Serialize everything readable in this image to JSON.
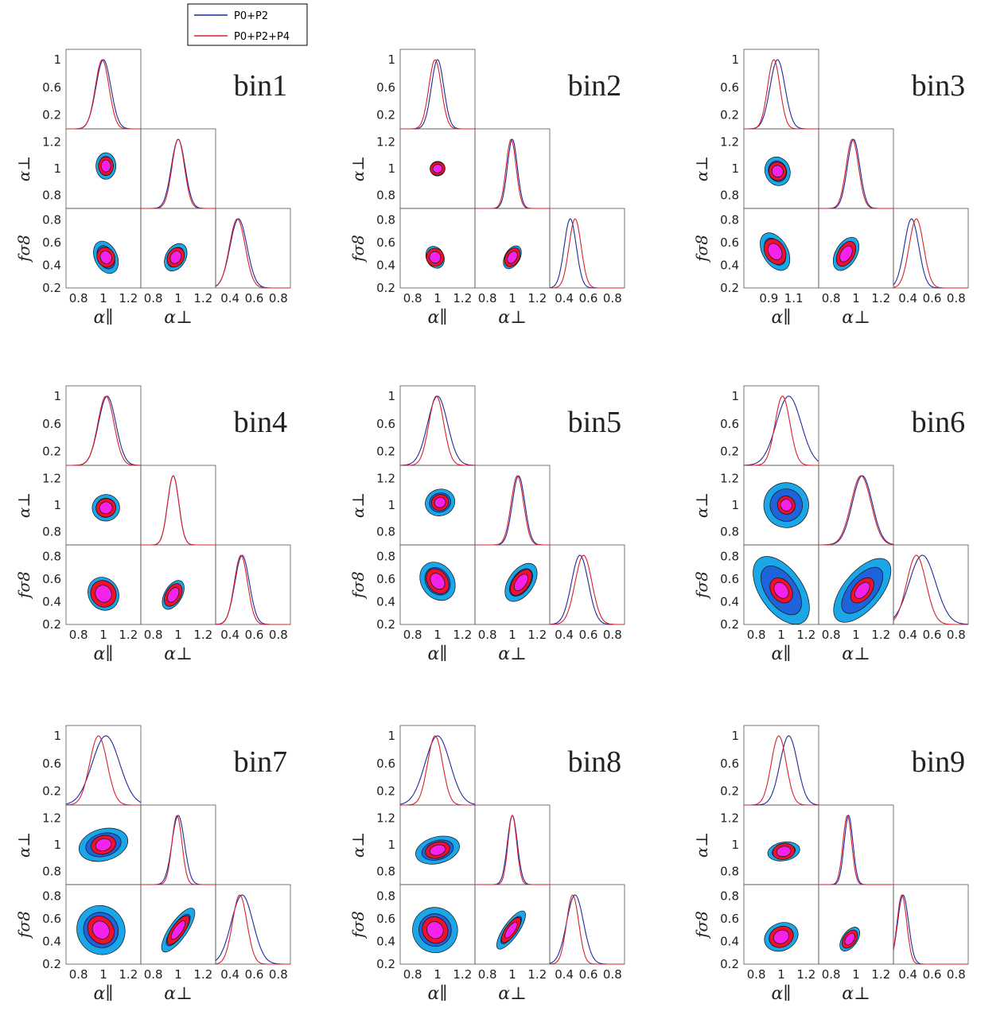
{
  "legend": {
    "entries": [
      {
        "label": "P0+P2",
        "color": "#1f2a9c"
      },
      {
        "label": "P0+P2+P4",
        "color": "#d6222e"
      }
    ]
  },
  "colors": {
    "outer_contour": "#1ba6e8",
    "mid_contour": "#1e63d9",
    "red_contour": "#f0102a",
    "inner_contour": "#f523ea",
    "blue_line": "#1f2a9c",
    "red_line": "#d6222e"
  },
  "axis_labels": {
    "alpha_par": "α∥",
    "alpha_perp": "α⊥",
    "fs8": "fσ8"
  },
  "chart_data": [
    {
      "type": "triangle",
      "title": "bin1",
      "x_ticks": {
        "alpha_par": [
          "0.8",
          "1",
          "1.2"
        ],
        "alpha_perp": [
          "0.8",
          "1",
          "1.2"
        ],
        "fs8": [
          "0.4",
          "0.6",
          "0.8"
        ]
      },
      "y_ticks": {
        "diag": [
          "1",
          "0.6",
          "0.2"
        ],
        "alpha_perp": [
          "1.2",
          "1",
          "0.8"
        ],
        "fs8": [
          "0.8",
          "0.6",
          "0.4",
          "0.2"
        ]
      },
      "marginals": {
        "alpha_par": {
          "blue_mean": 1.0,
          "blue_sigma": 0.06,
          "red_mean": 0.99,
          "red_sigma": 0.055
        },
        "alpha_perp": {
          "blue_mean": 1.0,
          "blue_sigma": 0.055,
          "red_mean": 1.0,
          "red_sigma": 0.05
        },
        "fs8": {
          "blue_mean": 0.47,
          "blue_sigma": 0.07,
          "red_mean": 0.46,
          "red_sigma": 0.065
        }
      },
      "contours_2d": {
        "par_perp": {
          "cx": 1.02,
          "cy": 1.02,
          "blue_size": [
            0.16,
            0.2
          ],
          "red_size": [
            0.12,
            0.14
          ],
          "tilt": 0
        },
        "par_fs8": {
          "cx": 1.02,
          "cy": 0.47,
          "blue_size": [
            0.18,
            0.3
          ],
          "red_size": [
            0.14,
            0.18
          ],
          "tilt": -25
        },
        "perp_fs8": {
          "cx": 0.98,
          "cy": 0.47,
          "blue_size": [
            0.16,
            0.26
          ],
          "red_size": [
            0.13,
            0.18
          ],
          "tilt": 30
        }
      }
    },
    {
      "type": "triangle",
      "title": "bin2",
      "x_ticks": {
        "alpha_par": [
          "0.8",
          "1",
          "1.2"
        ],
        "alpha_perp": [
          "0.8",
          "1",
          "1.2"
        ],
        "fs8": [
          "0.4",
          "0.6",
          "0.8"
        ]
      },
      "y_ticks": {
        "diag": [
          "1",
          "0.6",
          "0.2"
        ],
        "alpha_perp": [
          "1.2",
          "1",
          "0.8"
        ],
        "fs8": [
          "0.8",
          "0.6",
          "0.4",
          "0.2"
        ]
      },
      "marginals": {
        "alpha_par": {
          "blue_mean": 1.0,
          "blue_sigma": 0.05,
          "red_mean": 0.98,
          "red_sigma": 0.05
        },
        "alpha_perp": {
          "blue_mean": 1.0,
          "blue_sigma": 0.04,
          "red_mean": 0.99,
          "red_sigma": 0.04
        },
        "fs8": {
          "blue_mean": 0.45,
          "blue_sigma": 0.05,
          "red_mean": 0.49,
          "red_sigma": 0.05
        }
      },
      "contours_2d": {
        "par_perp": {
          "cx": 1.0,
          "cy": 1.0,
          "blue_size": [
            0.12,
            0.11
          ],
          "red_size": [
            0.12,
            0.1
          ],
          "tilt": -10
        },
        "par_fs8": {
          "cx": 0.98,
          "cy": 0.47,
          "blue_size": [
            0.14,
            0.2
          ],
          "red_size": [
            0.14,
            0.16
          ],
          "tilt": -25
        },
        "perp_fs8": {
          "cx": 1.0,
          "cy": 0.47,
          "blue_size": [
            0.12,
            0.22
          ],
          "red_size": [
            0.11,
            0.18
          ],
          "tilt": 30
        }
      }
    },
    {
      "type": "triangle",
      "title": "bin3",
      "x_ticks": {
        "alpha_par": [
          "0.9",
          "1.1"
        ],
        "alpha_perp": [
          "0.8",
          "1",
          "1.2"
        ],
        "fs8": [
          "0.4",
          "0.6",
          "0.8"
        ]
      },
      "y_ticks": {
        "diag": [
          "1",
          "0.6",
          "0.2"
        ],
        "alpha_perp": [
          "1.2",
          "1",
          "0.8"
        ],
        "fs8": [
          "0.8",
          "0.6",
          "0.4",
          "0.2"
        ]
      },
      "marginals": {
        "alpha_par": {
          "blue_mean": 0.97,
          "blue_sigma": 0.06,
          "red_mean": 0.94,
          "red_sigma": 0.05
        },
        "alpha_perp": {
          "blue_mean": 0.98,
          "blue_sigma": 0.05,
          "red_mean": 0.97,
          "red_sigma": 0.05
        },
        "fs8": {
          "blue_mean": 0.43,
          "blue_sigma": 0.06,
          "red_mean": 0.47,
          "red_sigma": 0.06
        }
      },
      "contours_2d": {
        "par_perp": {
          "cx": 0.97,
          "cy": 0.98,
          "blue_size": [
            0.2,
            0.22
          ],
          "red_size": [
            0.14,
            0.14
          ],
          "tilt": -20
        },
        "par_fs8": {
          "cx": 0.95,
          "cy": 0.52,
          "blue_size": [
            0.2,
            0.36
          ],
          "red_size": [
            0.16,
            0.24
          ],
          "tilt": -30
        },
        "perp_fs8": {
          "cx": 0.92,
          "cy": 0.5,
          "blue_size": [
            0.17,
            0.32
          ],
          "red_size": [
            0.13,
            0.24
          ],
          "tilt": 30
        }
      }
    },
    {
      "type": "triangle",
      "title": "bin4",
      "x_ticks": {
        "alpha_par": [
          "0.8",
          "1",
          "1.2"
        ],
        "alpha_perp": [
          "0.8",
          "1",
          "1.2"
        ],
        "fs8": [
          "0.4",
          "0.6",
          "0.8"
        ]
      },
      "y_ticks": {
        "diag": [
          "1",
          "0.6",
          "0.2"
        ],
        "alpha_perp": [
          "1.2",
          "1",
          "0.8"
        ],
        "fs8": [
          "0.8",
          "0.6",
          "0.4",
          "0.2"
        ]
      },
      "marginals": {
        "alpha_par": {
          "blue_mean": 1.03,
          "blue_sigma": 0.07,
          "red_mean": 1.02,
          "red_sigma": 0.065
        },
        "alpha_perp": {
          "blue_mean": 0.96,
          "blue_sigma": 0.045,
          "red_mean": 0.96,
          "red_sigma": 0.045
        },
        "fs8": {
          "blue_mean": 0.5,
          "blue_sigma": 0.06,
          "red_mean": 0.49,
          "red_sigma": 0.055
        }
      },
      "contours_2d": {
        "par_perp": {
          "cx": 1.02,
          "cy": 0.98,
          "blue_size": [
            0.22,
            0.2
          ],
          "red_size": [
            0.16,
            0.14
          ],
          "tilt": -10
        },
        "par_fs8": {
          "cx": 1.0,
          "cy": 0.47,
          "blue_size": [
            0.24,
            0.3
          ],
          "red_size": [
            0.2,
            0.24
          ],
          "tilt": -30
        },
        "perp_fs8": {
          "cx": 0.96,
          "cy": 0.46,
          "blue_size": [
            0.14,
            0.28
          ],
          "red_size": [
            0.12,
            0.22
          ],
          "tilt": 30
        }
      }
    },
    {
      "type": "triangle",
      "title": "bin5",
      "x_ticks": {
        "alpha_par": [
          "0.8",
          "1",
          "1.2"
        ],
        "alpha_perp": [
          "0.8",
          "1",
          "1.2"
        ],
        "fs8": [
          "0.4",
          "0.6",
          "0.8"
        ]
      },
      "y_ticks": {
        "diag": [
          "1",
          "0.6",
          "0.2"
        ],
        "alpha_perp": [
          "1.2",
          "1",
          "0.8"
        ],
        "fs8": [
          "0.8",
          "0.6",
          "0.4",
          "0.2"
        ]
      },
      "marginals": {
        "alpha_par": {
          "blue_mean": 1.0,
          "blue_sigma": 0.08,
          "red_mean": 0.99,
          "red_sigma": 0.06
        },
        "alpha_perp": {
          "blue_mean": 1.05,
          "blue_sigma": 0.05,
          "red_mean": 1.04,
          "red_sigma": 0.05
        },
        "fs8": {
          "blue_mean": 0.53,
          "blue_sigma": 0.07,
          "red_mean": 0.56,
          "red_sigma": 0.07
        }
      },
      "contours_2d": {
        "par_perp": {
          "cx": 1.02,
          "cy": 1.02,
          "blue_size": [
            0.24,
            0.2
          ],
          "red_size": [
            0.14,
            0.12
          ],
          "tilt": -20
        },
        "par_fs8": {
          "cx": 1.0,
          "cy": 0.58,
          "blue_size": [
            0.26,
            0.36
          ],
          "red_size": [
            0.16,
            0.24
          ],
          "tilt": -35
        },
        "perp_fs8": {
          "cx": 1.07,
          "cy": 0.57,
          "blue_size": [
            0.2,
            0.38
          ],
          "red_size": [
            0.13,
            0.26
          ],
          "tilt": 35
        }
      }
    },
    {
      "type": "triangle",
      "title": "bin6",
      "x_ticks": {
        "alpha_par": [
          "0.8",
          "1",
          "1.2"
        ],
        "alpha_perp": [
          "0.8",
          "1",
          "1.2"
        ],
        "fs8": [
          "0.4",
          "0.6",
          "0.8"
        ]
      },
      "y_ticks": {
        "diag": [
          "1",
          "0.6",
          "0.2"
        ],
        "alpha_perp": [
          "1.2",
          "1",
          "0.8"
        ],
        "fs8": [
          "0.8",
          "0.6",
          "0.4",
          "0.2"
        ]
      },
      "marginals": {
        "alpha_par": {
          "blue_mean": 1.06,
          "blue_sigma": 0.1,
          "red_mean": 1.01,
          "red_sigma": 0.06
        },
        "alpha_perp": {
          "blue_mean": 1.05,
          "blue_sigma": 0.08,
          "red_mean": 1.04,
          "red_sigma": 0.08
        },
        "fs8": {
          "blue_mean": 0.52,
          "blue_sigma": 0.11,
          "red_mean": 0.47,
          "red_sigma": 0.08
        }
      },
      "contours_2d": {
        "par_perp": {
          "cx": 1.04,
          "cy": 1.0,
          "blue_size": [
            0.36,
            0.34
          ],
          "red_size": [
            0.14,
            0.14
          ],
          "tilt": -30
        },
        "par_fs8": {
          "cx": 1.0,
          "cy": 0.5,
          "blue_size": [
            0.34,
            0.68
          ],
          "red_size": [
            0.16,
            0.24
          ],
          "tilt": -35
        },
        "perp_fs8": {
          "cx": 1.05,
          "cy": 0.5,
          "blue_size": [
            0.3,
            0.68
          ],
          "red_size": [
            0.14,
            0.26
          ],
          "tilt": 40
        }
      }
    },
    {
      "type": "triangle",
      "title": "bin7",
      "x_ticks": {
        "alpha_par": [
          "0.8",
          "1",
          "1.2"
        ],
        "alpha_perp": [
          "0.8",
          "1",
          "1.2"
        ],
        "fs8": [
          "0.4",
          "0.6",
          "0.8"
        ]
      },
      "y_ticks": {
        "diag": [
          "1",
          "0.6",
          "0.2"
        ],
        "alpha_perp": [
          "1.2",
          "1",
          "0.8"
        ],
        "fs8": [
          "0.8",
          "0.6",
          "0.4",
          "0.2"
        ]
      },
      "marginals": {
        "alpha_par": {
          "blue_mean": 1.02,
          "blue_sigma": 0.11,
          "red_mean": 0.96,
          "red_sigma": 0.07
        },
        "alpha_perp": {
          "blue_mean": 1.0,
          "blue_sigma": 0.05,
          "red_mean": 0.99,
          "red_sigma": 0.04
        },
        "fs8": {
          "blue_mean": 0.5,
          "blue_sigma": 0.09,
          "red_mean": 0.48,
          "red_sigma": 0.06
        }
      },
      "contours_2d": {
        "par_perp": {
          "cx": 1.0,
          "cy": 1.0,
          "blue_size": [
            0.4,
            0.24
          ],
          "red_size": [
            0.2,
            0.14
          ],
          "tilt": -15
        },
        "par_fs8": {
          "cx": 0.98,
          "cy": 0.5,
          "blue_size": [
            0.38,
            0.44
          ],
          "red_size": [
            0.2,
            0.26
          ],
          "tilt": -35
        },
        "perp_fs8": {
          "cx": 1.0,
          "cy": 0.5,
          "blue_size": [
            0.14,
            0.46
          ],
          "red_size": [
            0.1,
            0.3
          ],
          "tilt": 35
        }
      }
    },
    {
      "type": "triangle",
      "title": "bin8",
      "x_ticks": {
        "alpha_par": [
          "0.8",
          "1",
          "1.2"
        ],
        "alpha_perp": [
          "0.8",
          "1",
          "1.2"
        ],
        "fs8": [
          "0.4",
          "0.6",
          "0.8"
        ]
      },
      "y_ticks": {
        "diag": [
          "1",
          "0.6",
          "0.2"
        ],
        "alpha_perp": [
          "1.2",
          "1",
          "0.8"
        ],
        "fs8": [
          "0.8",
          "0.6",
          "0.4",
          "0.2"
        ]
      },
      "marginals": {
        "alpha_par": {
          "blue_mean": 1.0,
          "blue_sigma": 0.1,
          "red_mean": 0.98,
          "red_sigma": 0.06
        },
        "alpha_perp": {
          "blue_mean": 1.0,
          "blue_sigma": 0.04,
          "red_mean": 1.0,
          "red_sigma": 0.035
        },
        "fs8": {
          "blue_mean": 0.49,
          "blue_sigma": 0.07,
          "red_mean": 0.47,
          "red_sigma": 0.05
        }
      },
      "contours_2d": {
        "par_perp": {
          "cx": 1.0,
          "cy": 0.96,
          "blue_size": [
            0.36,
            0.2
          ],
          "red_size": [
            0.2,
            0.12
          ],
          "tilt": -15
        },
        "par_fs8": {
          "cx": 0.98,
          "cy": 0.5,
          "blue_size": [
            0.36,
            0.4
          ],
          "red_size": [
            0.2,
            0.24
          ],
          "tilt": -35
        },
        "perp_fs8": {
          "cx": 0.99,
          "cy": 0.5,
          "blue_size": [
            0.12,
            0.4
          ],
          "red_size": [
            0.09,
            0.26
          ],
          "tilt": 35
        }
      }
    },
    {
      "type": "triangle",
      "title": "bin9",
      "x_ticks": {
        "alpha_par": [
          "0.8",
          "1",
          "1.2"
        ],
        "alpha_perp": [
          "0.8",
          "1",
          "1.2"
        ],
        "fs8": [
          "0.4",
          "0.6",
          "0.8"
        ]
      },
      "y_ticks": {
        "diag": [
          "1",
          "0.6",
          "0.2"
        ],
        "alpha_perp": [
          "1.2",
          "1",
          "0.8"
        ],
        "fs8": [
          "0.8",
          "0.6",
          "0.4",
          "0.2"
        ]
      },
      "marginals": {
        "alpha_par": {
          "blue_mean": 1.06,
          "blue_sigma": 0.07,
          "red_mean": 0.98,
          "red_sigma": 0.06
        },
        "alpha_perp": {
          "blue_mean": 0.94,
          "blue_sigma": 0.035,
          "red_mean": 0.93,
          "red_sigma": 0.035
        },
        "fs8": {
          "blue_mean": 0.36,
          "blue_sigma": 0.045,
          "red_mean": 0.35,
          "red_sigma": 0.04
        }
      },
      "contours_2d": {
        "par_perp": {
          "cx": 1.02,
          "cy": 0.95,
          "blue_size": [
            0.26,
            0.14
          ],
          "red_size": [
            0.18,
            0.12
          ],
          "tilt": -10
        },
        "par_fs8": {
          "cx": 1.0,
          "cy": 0.44,
          "blue_size": [
            0.28,
            0.24
          ],
          "red_size": [
            0.2,
            0.18
          ],
          "tilt": -25
        },
        "perp_fs8": {
          "cx": 0.95,
          "cy": 0.42,
          "blue_size": [
            0.12,
            0.24
          ],
          "red_size": [
            0.1,
            0.18
          ],
          "tilt": 35
        }
      }
    }
  ]
}
